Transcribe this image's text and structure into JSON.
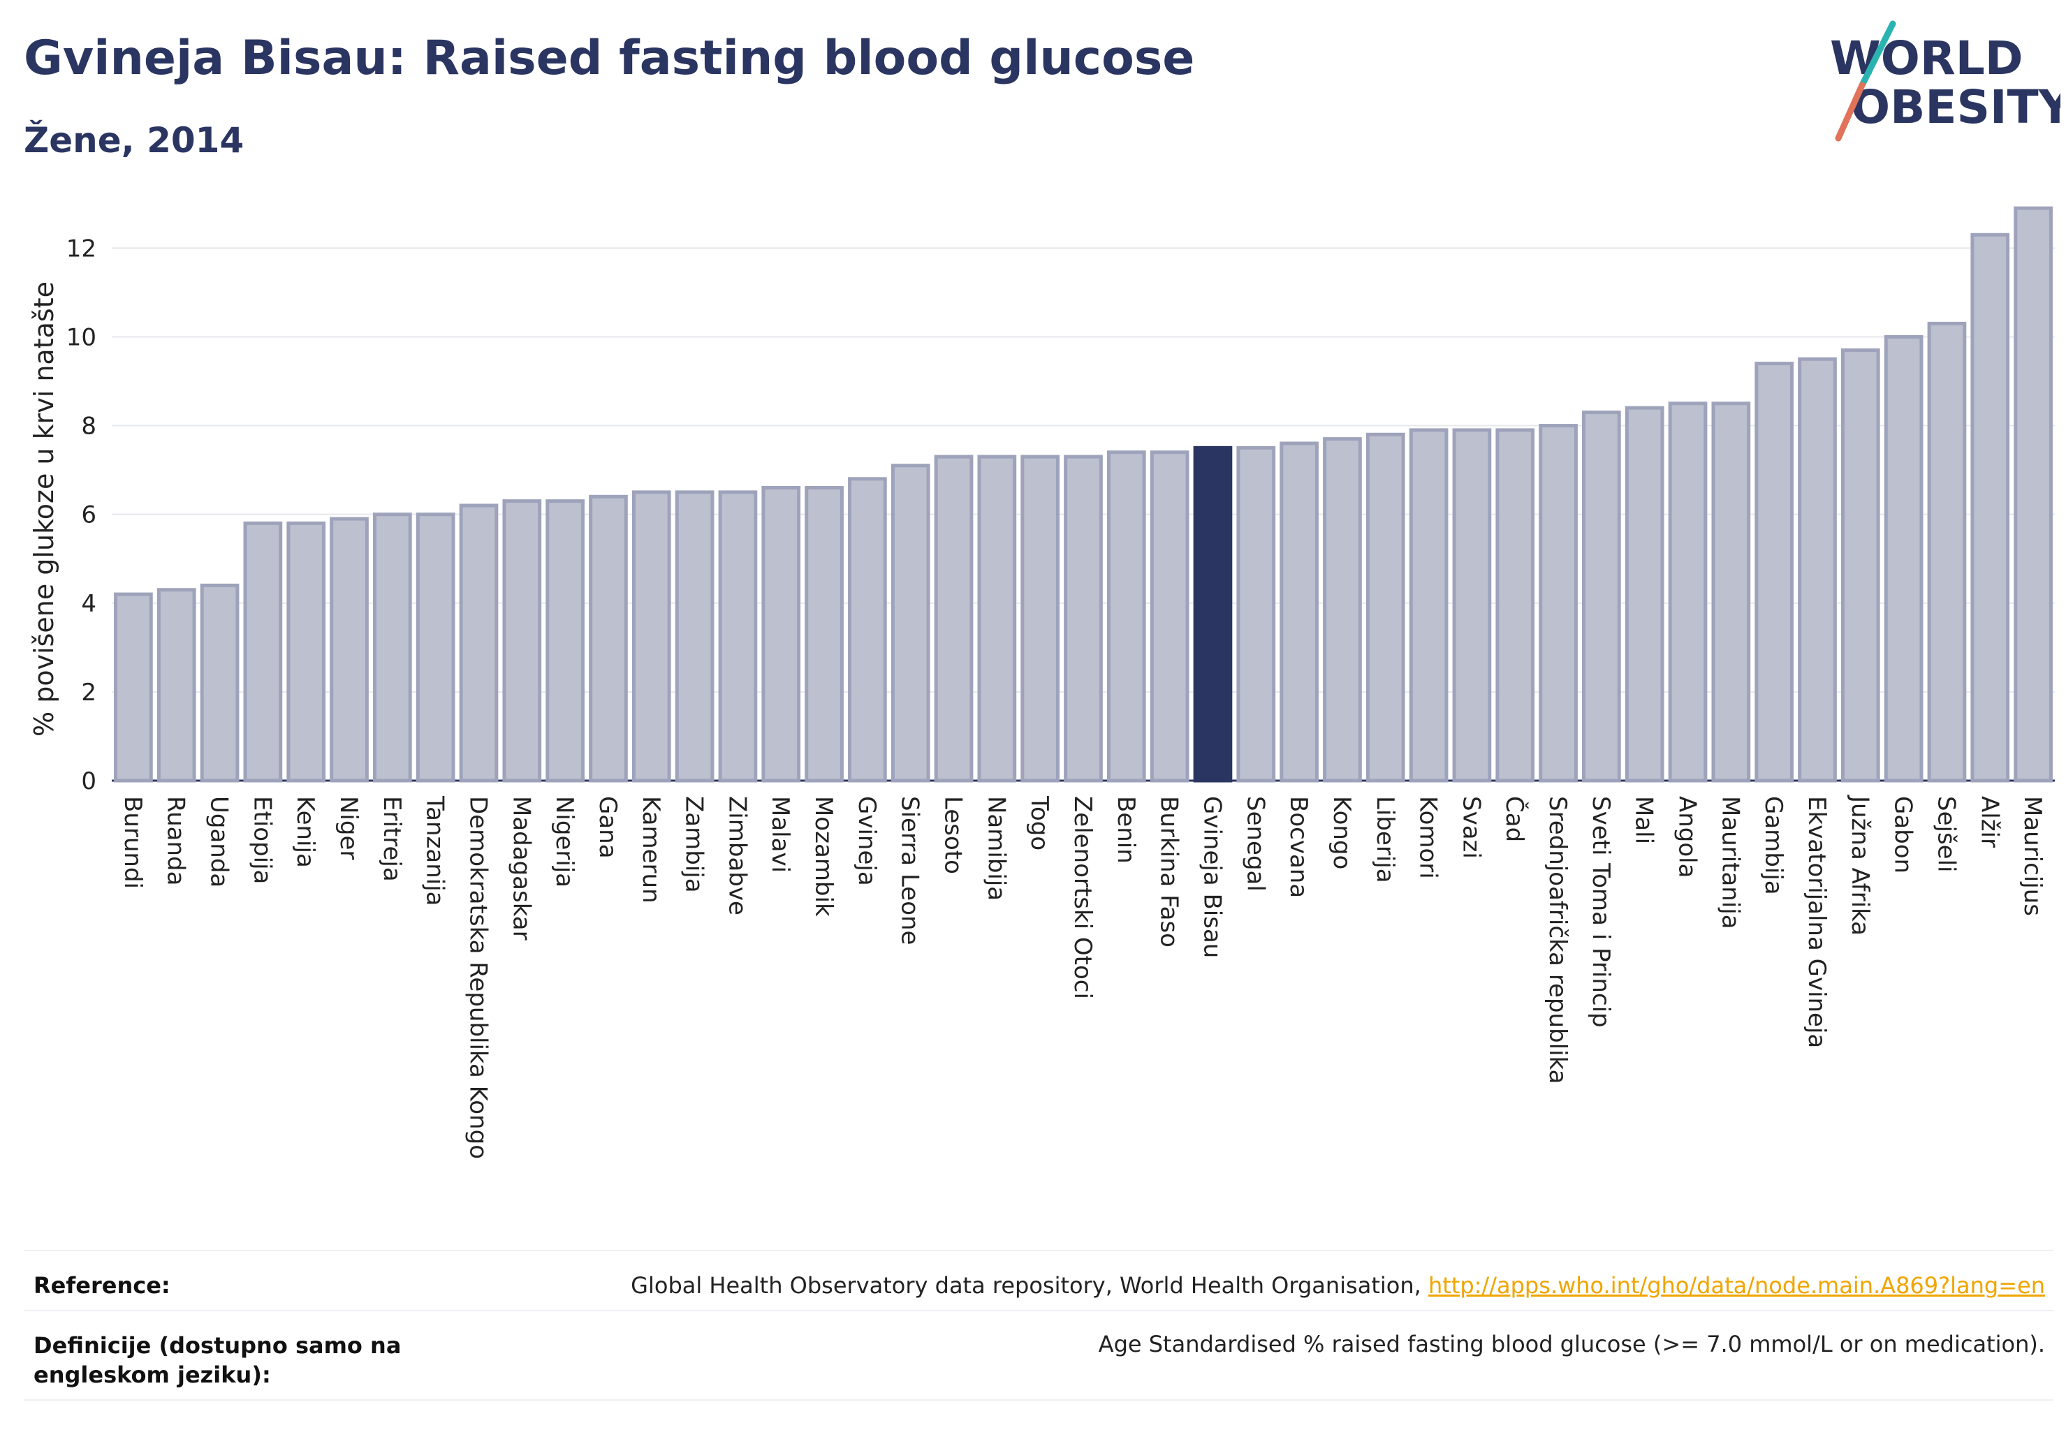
{
  "header": {
    "title": "Gvineja Bisau: Raised fasting blood glucose",
    "subtitle": "Žene, 2014"
  },
  "logo": {
    "line1": "WORLD",
    "line2": "OBESITY",
    "accent_colors": [
      "#2bb3b1",
      "#e0735a"
    ]
  },
  "colors": {
    "bar": "#bcc0cf",
    "bar_edge": "#9ea3bb",
    "highlight": "#2b3561",
    "grid": "#e6e8ee",
    "text": "#2b3561"
  },
  "chart_data": {
    "type": "bar",
    "ylabel": "% povišene glukoze u krvi natašte",
    "ylim": [
      0,
      13.5
    ],
    "yticks": [
      0,
      2,
      4,
      6,
      8,
      10,
      12
    ],
    "grid": true,
    "highlight": "Gvineja Bisau",
    "categories": [
      "Burundi",
      "Ruanda",
      "Uganda",
      "Etiopija",
      "Kenija",
      "Niger",
      "Eritreja",
      "Tanzanija",
      "Demokratska Republika Kongo",
      "Madagaskar",
      "Nigerija",
      "Gana",
      "Kamerun",
      "Zambija",
      "Zimbabve",
      "Malavi",
      "Mozambik",
      "Gvineja",
      "Sierra Leone",
      "Lesoto",
      "Namibija",
      "Togo",
      "Zelenortski Otoci",
      "Benin",
      "Burkina Faso",
      "Gvineja Bisau",
      "Senegal",
      "Bocvana",
      "Kongo",
      "Liberija",
      "Komori",
      "Svazi",
      "Čad",
      "Srednjoafrička republika",
      "Sveti Toma i Princip",
      "Mali",
      "Angola",
      "Mauritanija",
      "Gambija",
      "Ekvatorijalna Gvineja",
      "Južna Afrika",
      "Gabon",
      "Sejšeli",
      "Alžir",
      "Mauricijus"
    ],
    "values": [
      4.2,
      4.3,
      4.4,
      5.8,
      5.8,
      5.9,
      6.0,
      6.0,
      6.2,
      6.3,
      6.3,
      6.4,
      6.5,
      6.5,
      6.5,
      6.6,
      6.6,
      6.8,
      7.1,
      7.3,
      7.3,
      7.3,
      7.3,
      7.4,
      7.4,
      7.5,
      7.5,
      7.6,
      7.7,
      7.8,
      7.9,
      7.9,
      7.9,
      8.0,
      8.3,
      8.4,
      8.5,
      8.5,
      9.4,
      9.5,
      9.7,
      10.0,
      10.3,
      12.3,
      12.9
    ]
  },
  "footer": {
    "reference_label": "Reference:",
    "reference_text": "Global Health Observatory data repository, World Health Organisation, ",
    "reference_link": "http://apps.who.int/gho/data/node.main.A869?lang=en",
    "definition_label": "Definicije (dostupno samo na engleskom jeziku):",
    "definition_text": "Age Standardised % raised fasting blood glucose (>= 7.0 mmol/L or on medication)."
  }
}
